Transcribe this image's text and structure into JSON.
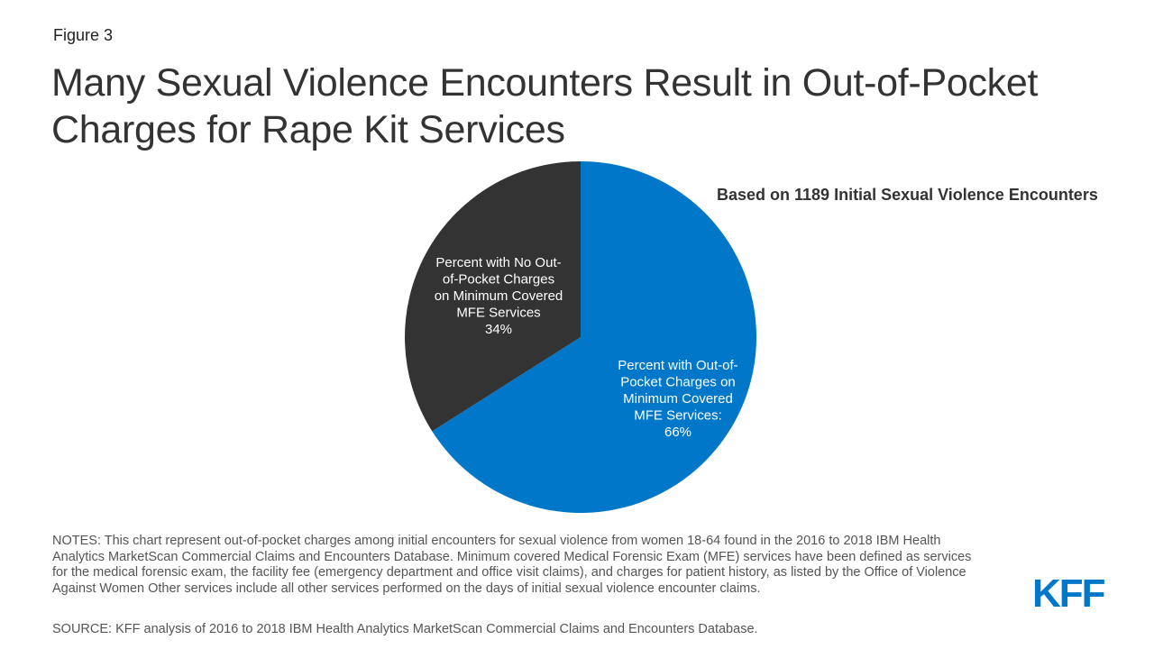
{
  "figure_label": "Figure 3",
  "title": "Many Sexual Violence Encounters Result in Out-of-Pocket Charges for Rape Kit Services",
  "chart_data": {
    "type": "pie",
    "subtitle": "Based on 1189 Initial Sexual Violence Encounters",
    "slices": [
      {
        "label_lines": [
          "Percent with Out-of-",
          "Pocket Charges on",
          "Minimum Covered",
          "MFE Services:",
          "66%"
        ],
        "value": 66,
        "color": "#0077c8"
      },
      {
        "label_lines": [
          "Percent with No Out-",
          "of-Pocket Charges",
          "on Minimum Covered",
          "MFE Services",
          "34%"
        ],
        "value": 34,
        "color": "#333333"
      }
    ]
  },
  "notes": "NOTES: This chart represent out-of-pocket charges among initial encounters for sexual violence from women 18-64 found in the 2016 to 2018 IBM Health Analytics MarketScan Commercial Claims and Encounters Database. Minimum covered Medical Forensic Exam (MFE) services have been defined as services for the medical forensic exam, the facility fee (emergency department and office visit claims), and charges for patient history, as listed by the Office of Violence Against Women Other services include all other services performed on the days of initial sexual violence encounter claims.",
  "source": "SOURCE: KFF analysis of 2016 to 2018 IBM Health Analytics MarketScan Commercial Claims and Encounters Database.",
  "logo": "KFF"
}
